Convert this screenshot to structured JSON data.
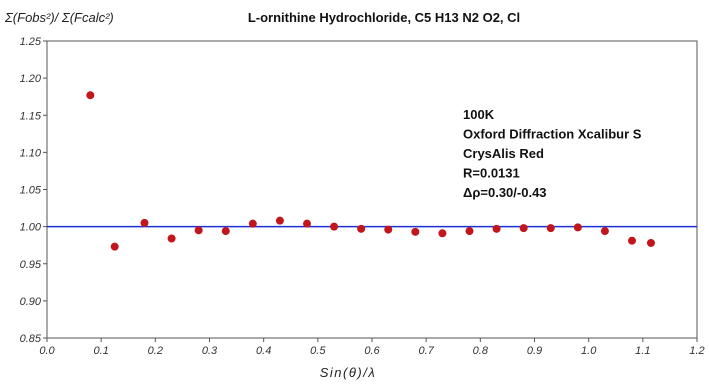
{
  "chart_data": {
    "type": "scatter",
    "title": "L-ornithine Hydrochloride, C5 H13 N2 O2, Cl",
    "ylabel": "Σ(Fobs²)/ Σ(Fcalc²)",
    "xlabel": "Sin(θ)/λ",
    "xlim": [
      0.0,
      1.2
    ],
    "ylim": [
      0.85,
      1.25
    ],
    "x_ticks": [
      "0.0",
      "0.1",
      "0.2",
      "0.3",
      "0.4",
      "0.5",
      "0.6",
      "0.7",
      "0.8",
      "0.9",
      "1.0",
      "1.1",
      "1.2"
    ],
    "y_ticks": [
      "0.85",
      "0.90",
      "0.95",
      "1.00",
      "1.05",
      "1.10",
      "1.15",
      "1.20",
      "1.25"
    ],
    "grid": false,
    "reference_line": {
      "y": 1.0,
      "color": "#1f2fd6"
    },
    "point_color": "#c0161c",
    "points": [
      {
        "x": 0.08,
        "y": 1.177
      },
      {
        "x": 0.125,
        "y": 0.973
      },
      {
        "x": 0.18,
        "y": 1.005
      },
      {
        "x": 0.23,
        "y": 0.984
      },
      {
        "x": 0.28,
        "y": 0.995
      },
      {
        "x": 0.33,
        "y": 0.994
      },
      {
        "x": 0.38,
        "y": 1.004
      },
      {
        "x": 0.43,
        "y": 1.008
      },
      {
        "x": 0.48,
        "y": 1.004
      },
      {
        "x": 0.53,
        "y": 1.0
      },
      {
        "x": 0.58,
        "y": 0.997
      },
      {
        "x": 0.63,
        "y": 0.996
      },
      {
        "x": 0.68,
        "y": 0.993
      },
      {
        "x": 0.73,
        "y": 0.991
      },
      {
        "x": 0.78,
        "y": 0.994
      },
      {
        "x": 0.83,
        "y": 0.997
      },
      {
        "x": 0.88,
        "y": 0.998
      },
      {
        "x": 0.93,
        "y": 0.998
      },
      {
        "x": 0.98,
        "y": 0.999
      },
      {
        "x": 1.03,
        "y": 0.994
      },
      {
        "x": 1.08,
        "y": 0.981
      },
      {
        "x": 1.115,
        "y": 0.978
      }
    ],
    "annotations": [
      "100K",
      "Oxford Diffraction Xcalibur S",
      "CrysAlis Red",
      "R=0.0131",
      "Δρ=0.30/-0.43"
    ]
  }
}
